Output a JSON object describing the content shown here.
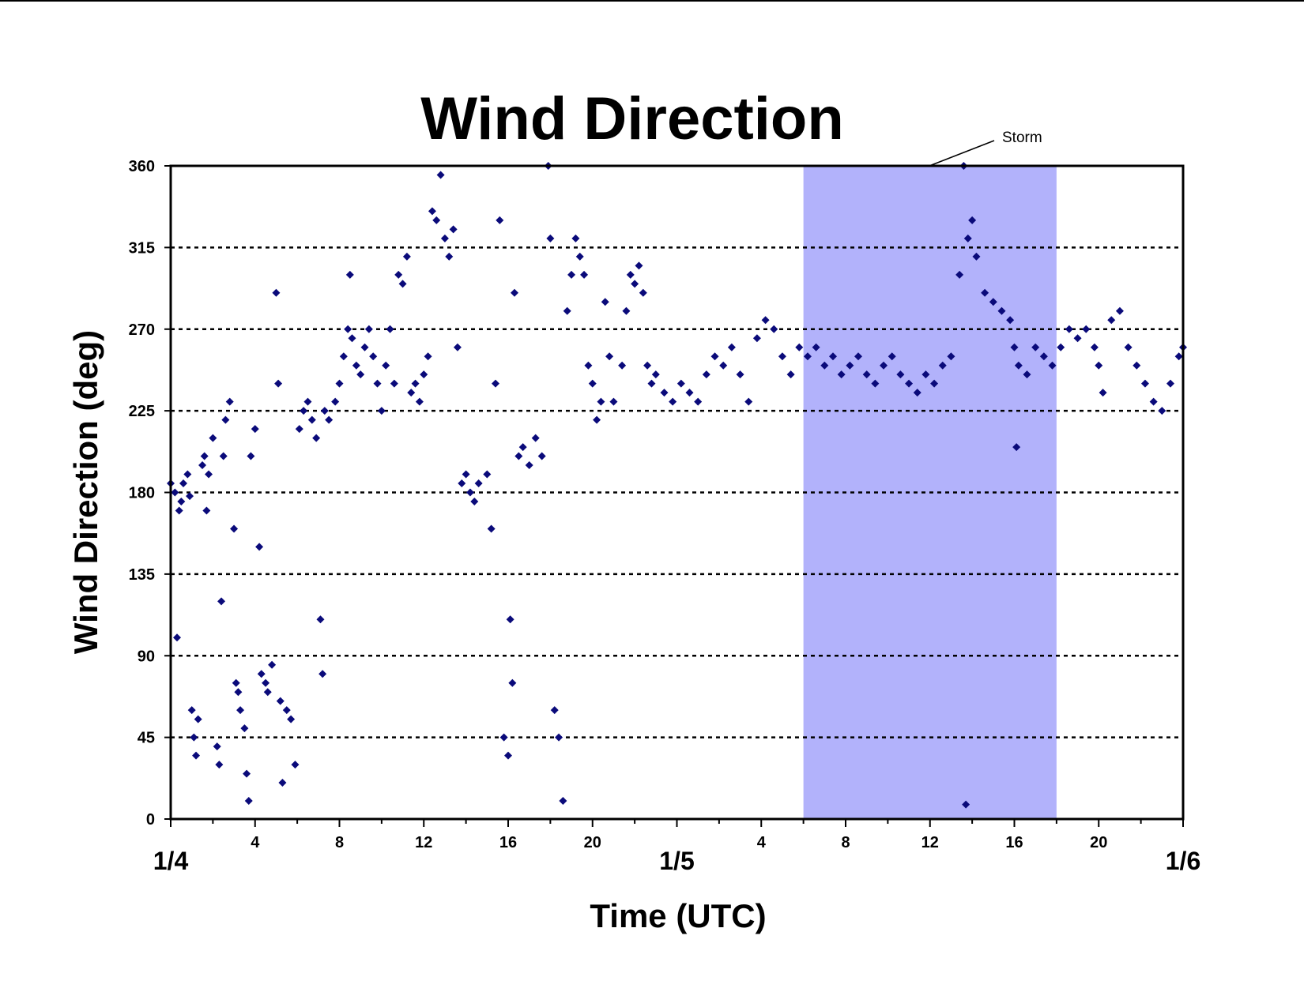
{
  "chart_data": {
    "type": "scatter",
    "title": "Wind Direction",
    "xlabel": "Time (UTC)",
    "ylabel": "Wind Direction (deg)",
    "x_unit": "hours since 1/4 00 UTC",
    "xlim": [
      0,
      48
    ],
    "ylim": [
      0,
      360
    ],
    "y_ticks": [
      0,
      45,
      90,
      135,
      180,
      225,
      270,
      315,
      360
    ],
    "x_hour_ticks": [
      {
        "x": 4,
        "label": "4"
      },
      {
        "x": 8,
        "label": "8"
      },
      {
        "x": 12,
        "label": "12"
      },
      {
        "x": 16,
        "label": "16"
      },
      {
        "x": 20,
        "label": "20"
      },
      {
        "x": 28,
        "label": "4"
      },
      {
        "x": 32,
        "label": "8"
      },
      {
        "x": 36,
        "label": "12"
      },
      {
        "x": 40,
        "label": "16"
      },
      {
        "x": 44,
        "label": "20"
      }
    ],
    "x_day_ticks": [
      {
        "x": 0,
        "label": "1/4"
      },
      {
        "x": 24,
        "label": "1/5"
      },
      {
        "x": 48,
        "label": "1/6"
      }
    ],
    "grid": "horizontal dashed",
    "marker": "diamond",
    "colors": {
      "points": "#0a0a7a",
      "storm_band": "#b2b2fb",
      "grid": "#000000"
    },
    "annotation": {
      "label": "Storm",
      "x_start": 30,
      "x_end": 42
    },
    "series": [
      {
        "points": [
          [
            0.0,
            185
          ],
          [
            0.2,
            180
          ],
          [
            0.3,
            100
          ],
          [
            0.4,
            170
          ],
          [
            0.5,
            175
          ],
          [
            0.6,
            185
          ],
          [
            0.8,
            190
          ],
          [
            0.9,
            178
          ],
          [
            1.0,
            60
          ],
          [
            1.1,
            45
          ],
          [
            1.2,
            35
          ],
          [
            1.3,
            55
          ],
          [
            1.5,
            195
          ],
          [
            1.6,
            200
          ],
          [
            1.7,
            170
          ],
          [
            1.8,
            190
          ],
          [
            2.0,
            210
          ],
          [
            2.2,
            40
          ],
          [
            2.3,
            30
          ],
          [
            2.4,
            120
          ],
          [
            2.5,
            200
          ],
          [
            2.6,
            220
          ],
          [
            2.8,
            230
          ],
          [
            3.0,
            160
          ],
          [
            3.1,
            75
          ],
          [
            3.2,
            70
          ],
          [
            3.3,
            60
          ],
          [
            3.5,
            50
          ],
          [
            3.6,
            25
          ],
          [
            3.7,
            10
          ],
          [
            3.8,
            200
          ],
          [
            4.0,
            215
          ],
          [
            4.2,
            150
          ],
          [
            4.3,
            80
          ],
          [
            4.5,
            75
          ],
          [
            4.6,
            70
          ],
          [
            4.8,
            85
          ],
          [
            5.0,
            290
          ],
          [
            5.1,
            240
          ],
          [
            5.2,
            65
          ],
          [
            5.3,
            20
          ],
          [
            5.5,
            60
          ],
          [
            5.7,
            55
          ],
          [
            5.9,
            30
          ],
          [
            6.1,
            215
          ],
          [
            6.3,
            225
          ],
          [
            6.5,
            230
          ],
          [
            6.7,
            220
          ],
          [
            6.9,
            210
          ],
          [
            7.1,
            110
          ],
          [
            7.2,
            80
          ],
          [
            7.3,
            225
          ],
          [
            7.5,
            220
          ],
          [
            7.8,
            230
          ],
          [
            8.0,
            240
          ],
          [
            8.2,
            255
          ],
          [
            8.4,
            270
          ],
          [
            8.5,
            300
          ],
          [
            8.6,
            265
          ],
          [
            8.8,
            250
          ],
          [
            9.0,
            245
          ],
          [
            9.2,
            260
          ],
          [
            9.4,
            270
          ],
          [
            9.6,
            255
          ],
          [
            9.8,
            240
          ],
          [
            10.0,
            225
          ],
          [
            10.2,
            250
          ],
          [
            10.4,
            270
          ],
          [
            10.6,
            240
          ],
          [
            10.8,
            300
          ],
          [
            11.0,
            295
          ],
          [
            11.2,
            310
          ],
          [
            11.4,
            235
          ],
          [
            11.6,
            240
          ],
          [
            11.8,
            230
          ],
          [
            12.0,
            245
          ],
          [
            12.2,
            255
          ],
          [
            12.4,
            335
          ],
          [
            12.6,
            330
          ],
          [
            12.8,
            355
          ],
          [
            13.0,
            320
          ],
          [
            13.2,
            310
          ],
          [
            13.4,
            325
          ],
          [
            13.6,
            260
          ],
          [
            13.8,
            185
          ],
          [
            14.0,
            190
          ],
          [
            14.2,
            180
          ],
          [
            14.4,
            175
          ],
          [
            14.6,
            185
          ],
          [
            15.0,
            190
          ],
          [
            15.2,
            160
          ],
          [
            15.4,
            240
          ],
          [
            15.6,
            330
          ],
          [
            15.8,
            45
          ],
          [
            16.0,
            35
          ],
          [
            16.1,
            110
          ],
          [
            16.2,
            75
          ],
          [
            16.3,
            290
          ],
          [
            16.5,
            200
          ],
          [
            16.7,
            205
          ],
          [
            17.0,
            195
          ],
          [
            17.3,
            210
          ],
          [
            17.6,
            200
          ],
          [
            17.9,
            360
          ],
          [
            18.0,
            320
          ],
          [
            18.2,
            60
          ],
          [
            18.4,
            45
          ],
          [
            18.6,
            10
          ],
          [
            18.8,
            280
          ],
          [
            19.0,
            300
          ],
          [
            19.2,
            320
          ],
          [
            19.4,
            310
          ],
          [
            19.6,
            300
          ],
          [
            19.8,
            250
          ],
          [
            20.0,
            240
          ],
          [
            20.2,
            220
          ],
          [
            20.4,
            230
          ],
          [
            20.6,
            285
          ],
          [
            20.8,
            255
          ],
          [
            21.0,
            230
          ],
          [
            21.4,
            250
          ],
          [
            21.6,
            280
          ],
          [
            21.8,
            300
          ],
          [
            22.0,
            295
          ],
          [
            22.2,
            305
          ],
          [
            22.4,
            290
          ],
          [
            22.6,
            250
          ],
          [
            22.8,
            240
          ],
          [
            23.0,
            245
          ],
          [
            23.4,
            235
          ],
          [
            23.8,
            230
          ],
          [
            24.2,
            240
          ],
          [
            24.6,
            235
          ],
          [
            25.0,
            230
          ],
          [
            25.4,
            245
          ],
          [
            25.8,
            255
          ],
          [
            26.2,
            250
          ],
          [
            26.6,
            260
          ],
          [
            27.0,
            245
          ],
          [
            27.4,
            230
          ],
          [
            27.8,
            265
          ],
          [
            28.2,
            275
          ],
          [
            28.6,
            270
          ],
          [
            29.0,
            255
          ],
          [
            29.4,
            245
          ],
          [
            29.8,
            260
          ],
          [
            30.2,
            255
          ],
          [
            30.6,
            260
          ],
          [
            31.0,
            250
          ],
          [
            31.4,
            255
          ],
          [
            31.8,
            245
          ],
          [
            32.2,
            250
          ],
          [
            32.6,
            255
          ],
          [
            33.0,
            245
          ],
          [
            33.4,
            240
          ],
          [
            33.8,
            250
          ],
          [
            34.2,
            255
          ],
          [
            34.6,
            245
          ],
          [
            35.0,
            240
          ],
          [
            35.4,
            235
          ],
          [
            35.8,
            245
          ],
          [
            36.2,
            240
          ],
          [
            36.6,
            250
          ],
          [
            37.0,
            255
          ],
          [
            37.4,
            300
          ],
          [
            37.6,
            360
          ],
          [
            37.8,
            320
          ],
          [
            38.0,
            330
          ],
          [
            38.2,
            310
          ],
          [
            38.6,
            290
          ],
          [
            39.0,
            285
          ],
          [
            39.4,
            280
          ],
          [
            39.8,
            275
          ],
          [
            40.0,
            260
          ],
          [
            40.2,
            250
          ],
          [
            40.6,
            245
          ],
          [
            41.0,
            260
          ],
          [
            41.4,
            255
          ],
          [
            41.8,
            250
          ],
          [
            42.2,
            260
          ],
          [
            42.6,
            270
          ],
          [
            43.0,
            265
          ],
          [
            43.4,
            270
          ],
          [
            43.8,
            260
          ],
          [
            44.0,
            250
          ],
          [
            44.2,
            235
          ],
          [
            44.6,
            275
          ],
          [
            45.0,
            280
          ],
          [
            45.4,
            260
          ],
          [
            45.8,
            250
          ],
          [
            46.2,
            240
          ],
          [
            46.6,
            230
          ],
          [
            47.0,
            225
          ],
          [
            47.4,
            240
          ],
          [
            47.8,
            255
          ],
          [
            48.0,
            260
          ],
          [
            40.1,
            205
          ],
          [
            37.7,
            8
          ]
        ]
      }
    ]
  }
}
